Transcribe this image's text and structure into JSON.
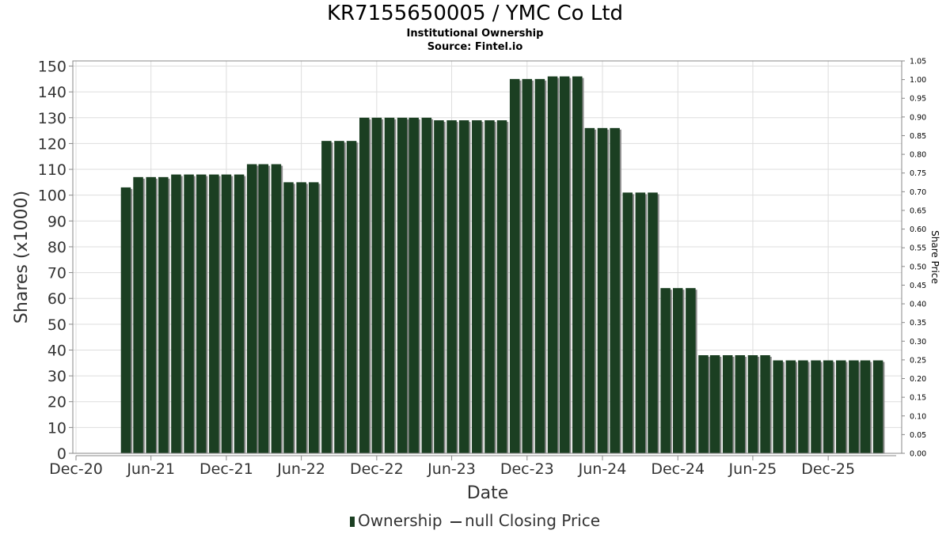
{
  "chart_data": {
    "type": "bar",
    "title": "KR7155650005 / YMC Co Ltd",
    "subtitle": "Institutional Ownership",
    "source": "Source: Fintel.io",
    "xlabel": "Date",
    "ylabel": "Shares (x1000)",
    "y2label": "Share Price",
    "ylim": [
      0,
      152
    ],
    "y2lim": [
      0,
      1.05
    ],
    "yticks": [
      0,
      10,
      20,
      30,
      40,
      50,
      60,
      70,
      80,
      90,
      100,
      110,
      120,
      130,
      140,
      150
    ],
    "y2ticks": [
      "0.00",
      "0.05",
      "0.10",
      "0.15",
      "0.20",
      "0.25",
      "0.30",
      "0.35",
      "0.40",
      "0.45",
      "0.50",
      "0.55",
      "0.60",
      "0.65",
      "0.70",
      "0.75",
      "0.80",
      "0.85",
      "0.90",
      "0.95",
      "1.00",
      "1.05"
    ],
    "xlim": [
      "2020-12-01",
      "2026-05-15"
    ],
    "xticks": [
      {
        "label": "Dec-20",
        "date": "2020-12-01"
      },
      {
        "label": "Jun-21",
        "date": "2021-06-01"
      },
      {
        "label": "Dec-21",
        "date": "2021-12-01"
      },
      {
        "label": "Jun-22",
        "date": "2022-06-01"
      },
      {
        "label": "Dec-22",
        "date": "2022-12-01"
      },
      {
        "label": "Jun-23",
        "date": "2023-06-01"
      },
      {
        "label": "Dec-23",
        "date": "2023-12-01"
      },
      {
        "label": "Jun-24",
        "date": "2024-06-01"
      },
      {
        "label": "Dec-24",
        "date": "2024-12-01"
      },
      {
        "label": "Jun-25",
        "date": "2025-06-01"
      },
      {
        "label": "Dec-25",
        "date": "2025-12-01"
      }
    ],
    "grid": true,
    "legend_position": "bottom",
    "series": [
      {
        "name": "Ownership",
        "color": "#1b3f22",
        "points": [
          {
            "date": "2021-04-01",
            "value": 103
          },
          {
            "date": "2021-05-01",
            "value": 107
          },
          {
            "date": "2021-06-01",
            "value": 107
          },
          {
            "date": "2021-07-01",
            "value": 107
          },
          {
            "date": "2021-08-01",
            "value": 108
          },
          {
            "date": "2021-09-01",
            "value": 108
          },
          {
            "date": "2021-10-01",
            "value": 108
          },
          {
            "date": "2021-11-01",
            "value": 108
          },
          {
            "date": "2021-12-01",
            "value": 108
          },
          {
            "date": "2022-01-01",
            "value": 108
          },
          {
            "date": "2022-02-01",
            "value": 112
          },
          {
            "date": "2022-03-01",
            "value": 112
          },
          {
            "date": "2022-04-01",
            "value": 112
          },
          {
            "date": "2022-05-01",
            "value": 105
          },
          {
            "date": "2022-06-01",
            "value": 105
          },
          {
            "date": "2022-07-01",
            "value": 105
          },
          {
            "date": "2022-08-01",
            "value": 121
          },
          {
            "date": "2022-09-01",
            "value": 121
          },
          {
            "date": "2022-10-01",
            "value": 121
          },
          {
            "date": "2022-11-01",
            "value": 130
          },
          {
            "date": "2022-12-01",
            "value": 130
          },
          {
            "date": "2023-01-01",
            "value": 130
          },
          {
            "date": "2023-02-01",
            "value": 130
          },
          {
            "date": "2023-03-01",
            "value": 130
          },
          {
            "date": "2023-04-01",
            "value": 130
          },
          {
            "date": "2023-05-01",
            "value": 129
          },
          {
            "date": "2023-06-01",
            "value": 129
          },
          {
            "date": "2023-07-01",
            "value": 129
          },
          {
            "date": "2023-08-01",
            "value": 129
          },
          {
            "date": "2023-09-01",
            "value": 129
          },
          {
            "date": "2023-10-01",
            "value": 129
          },
          {
            "date": "2023-11-01",
            "value": 145
          },
          {
            "date": "2023-12-01",
            "value": 145
          },
          {
            "date": "2024-01-01",
            "value": 145
          },
          {
            "date": "2024-02-01",
            "value": 146
          },
          {
            "date": "2024-03-01",
            "value": 146
          },
          {
            "date": "2024-04-01",
            "value": 146
          },
          {
            "date": "2024-05-01",
            "value": 126
          },
          {
            "date": "2024-06-01",
            "value": 126
          },
          {
            "date": "2024-07-01",
            "value": 126
          },
          {
            "date": "2024-08-01",
            "value": 101
          },
          {
            "date": "2024-09-01",
            "value": 101
          },
          {
            "date": "2024-10-01",
            "value": 101
          },
          {
            "date": "2024-11-01",
            "value": 64
          },
          {
            "date": "2024-12-01",
            "value": 64
          },
          {
            "date": "2025-01-01",
            "value": 64
          },
          {
            "date": "2025-02-01",
            "value": 38
          },
          {
            "date": "2025-03-01",
            "value": 38
          },
          {
            "date": "2025-04-01",
            "value": 38
          },
          {
            "date": "2025-05-01",
            "value": 38
          },
          {
            "date": "2025-06-01",
            "value": 38
          },
          {
            "date": "2025-07-01",
            "value": 38
          },
          {
            "date": "2025-08-01",
            "value": 36
          },
          {
            "date": "2025-09-01",
            "value": 36
          },
          {
            "date": "2025-10-01",
            "value": 36
          },
          {
            "date": "2025-11-01",
            "value": 36
          },
          {
            "date": "2025-12-01",
            "value": 36
          },
          {
            "date": "2026-01-01",
            "value": 36
          },
          {
            "date": "2026-02-01",
            "value": 36
          },
          {
            "date": "2026-03-01",
            "value": 36
          },
          {
            "date": "2026-04-01",
            "value": 36
          }
        ]
      },
      {
        "name": "null Closing Price",
        "color": "#333333",
        "points": []
      }
    ]
  },
  "legend": {
    "ownership_label": "Ownership",
    "price_label": "null Closing Price"
  }
}
